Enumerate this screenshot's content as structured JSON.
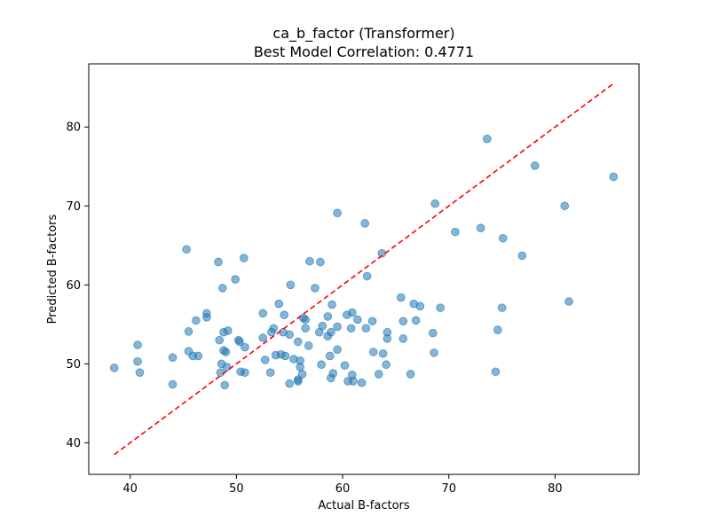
{
  "chart_data": {
    "type": "scatter",
    "title": "ca_b_factor (Transformer)",
    "subtitle": "Best Model Correlation: 0.4771",
    "xlabel": "Actual B-factors",
    "ylabel": "Predicted B-factors",
    "xlim": [
      36.1,
      87.9
    ],
    "ylim": [
      36.0,
      88.0
    ],
    "xticks": [
      40,
      50,
      60,
      70,
      80
    ],
    "yticks": [
      40,
      50,
      60,
      70,
      80
    ],
    "grid": false,
    "point_color": "#1f77b4",
    "point_alpha": 0.55,
    "reference_line": {
      "x": [
        38.5,
        85.5
      ],
      "y": [
        38.5,
        85.5
      ],
      "color": "#ff0000",
      "style": "dashed"
    },
    "points": [
      [
        38.5,
        49.5
      ],
      [
        40.7,
        52.4
      ],
      [
        40.7,
        50.3
      ],
      [
        40.9,
        48.9
      ],
      [
        44.0,
        50.8
      ],
      [
        44.0,
        47.4
      ],
      [
        45.3,
        64.5
      ],
      [
        45.5,
        54.1
      ],
      [
        45.5,
        51.6
      ],
      [
        45.9,
        51.0
      ],
      [
        46.2,
        55.5
      ],
      [
        46.4,
        51.0
      ],
      [
        47.2,
        56.4
      ],
      [
        47.2,
        55.9
      ],
      [
        48.3,
        62.9
      ],
      [
        48.4,
        53.0
      ],
      [
        48.5,
        48.9
      ],
      [
        48.6,
        50.0
      ],
      [
        48.7,
        59.6
      ],
      [
        48.8,
        54.0
      ],
      [
        48.8,
        51.7
      ],
      [
        48.9,
        47.3
      ],
      [
        49.0,
        51.5
      ],
      [
        49.1,
        49.6
      ],
      [
        49.2,
        54.2
      ],
      [
        49.9,
        60.7
      ],
      [
        50.2,
        53.0
      ],
      [
        50.3,
        52.8
      ],
      [
        50.4,
        49.0
      ],
      [
        50.7,
        63.4
      ],
      [
        50.8,
        52.1
      ],
      [
        50.8,
        48.9
      ],
      [
        52.5,
        56.4
      ],
      [
        52.5,
        53.3
      ],
      [
        52.7,
        50.5
      ],
      [
        53.2,
        48.9
      ],
      [
        53.3,
        54.0
      ],
      [
        53.5,
        54.5
      ],
      [
        53.7,
        51.1
      ],
      [
        54.0,
        57.6
      ],
      [
        54.2,
        51.2
      ],
      [
        54.4,
        54.0
      ],
      [
        54.5,
        56.2
      ],
      [
        54.6,
        51.0
      ],
      [
        55.0,
        53.7
      ],
      [
        55.0,
        47.5
      ],
      [
        55.1,
        60.0
      ],
      [
        55.4,
        50.6
      ],
      [
        55.8,
        52.8
      ],
      [
        55.8,
        48.0
      ],
      [
        55.8,
        47.8
      ],
      [
        56.0,
        50.4
      ],
      [
        56.0,
        49.6
      ],
      [
        56.2,
        48.7
      ],
      [
        56.3,
        55.8
      ],
      [
        56.5,
        55.6
      ],
      [
        56.5,
        54.5
      ],
      [
        56.8,
        52.3
      ],
      [
        56.9,
        63.0
      ],
      [
        57.4,
        59.6
      ],
      [
        57.8,
        54.0
      ],
      [
        57.9,
        62.9
      ],
      [
        58.0,
        49.9
      ],
      [
        58.1,
        54.8
      ],
      [
        58.6,
        56.0
      ],
      [
        58.6,
        53.5
      ],
      [
        58.8,
        51.0
      ],
      [
        58.9,
        48.2
      ],
      [
        58.9,
        54.0
      ],
      [
        59.0,
        57.5
      ],
      [
        59.1,
        48.8
      ],
      [
        59.5,
        69.1
      ],
      [
        59.5,
        54.7
      ],
      [
        59.5,
        51.8
      ],
      [
        60.2,
        49.8
      ],
      [
        60.4,
        56.2
      ],
      [
        60.5,
        47.8
      ],
      [
        60.8,
        54.5
      ],
      [
        60.9,
        56.5
      ],
      [
        60.9,
        48.6
      ],
      [
        61.0,
        47.8
      ],
      [
        61.4,
        55.6
      ],
      [
        61.8,
        47.6
      ],
      [
        62.1,
        67.8
      ],
      [
        62.2,
        54.5
      ],
      [
        62.3,
        61.1
      ],
      [
        62.8,
        55.4
      ],
      [
        62.9,
        51.5
      ],
      [
        63.4,
        48.7
      ],
      [
        63.7,
        64.0
      ],
      [
        63.8,
        51.3
      ],
      [
        64.1,
        49.9
      ],
      [
        64.2,
        54.0
      ],
      [
        64.2,
        53.2
      ],
      [
        65.5,
        58.4
      ],
      [
        65.7,
        55.4
      ],
      [
        65.7,
        53.2
      ],
      [
        66.4,
        48.7
      ],
      [
        66.7,
        57.6
      ],
      [
        66.9,
        55.5
      ],
      [
        67.3,
        57.3
      ],
      [
        68.5,
        53.9
      ],
      [
        68.6,
        51.4
      ],
      [
        68.7,
        70.3
      ],
      [
        69.2,
        57.1
      ],
      [
        70.6,
        66.7
      ],
      [
        73.0,
        67.2
      ],
      [
        73.6,
        78.5
      ],
      [
        74.4,
        49.0
      ],
      [
        74.6,
        54.3
      ],
      [
        75.0,
        57.1
      ],
      [
        75.1,
        65.9
      ],
      [
        76.9,
        63.7
      ],
      [
        78.1,
        75.1
      ],
      [
        80.9,
        70.0
      ],
      [
        81.3,
        57.9
      ],
      [
        85.5,
        73.7
      ]
    ]
  }
}
